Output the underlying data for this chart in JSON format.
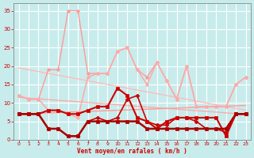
{
  "background_color": "#c8ecec",
  "grid_color": "#b0d8d8",
  "xlabel": "Vent moyen/en rafales ( km/h )",
  "xlabel_color": "#cc0000",
  "tick_color": "#cc0000",
  "ylim": [
    0,
    37
  ],
  "yticks": [
    0,
    5,
    10,
    15,
    20,
    25,
    30,
    35
  ],
  "series": [
    {
      "values": [
        19.5,
        19.0,
        18.5,
        18.0,
        17.5,
        17.0,
        16.5,
        16.0,
        15.5,
        15.0,
        14.5,
        14.0,
        13.5,
        13.0,
        12.5,
        12.0,
        11.5,
        11.0,
        10.5,
        10.0,
        9.5,
        9.0,
        8.5,
        8.0
      ],
      "color": "#ffbbbb",
      "linewidth": 1.0,
      "marker": null,
      "linestyle": "-"
    },
    {
      "values": [
        11.5,
        11.3,
        11.1,
        10.9,
        10.7,
        10.5,
        10.3,
        10.1,
        9.9,
        9.7,
        9.5,
        9.3,
        9.1,
        8.9,
        8.7,
        8.5,
        8.3,
        8.1,
        7.9,
        7.7,
        7.5,
        7.3,
        7.1,
        6.9
      ],
      "color": "#ffaaaa",
      "linewidth": 1.0,
      "marker": null,
      "linestyle": "-"
    },
    {
      "values": [
        7.0,
        7.1,
        7.2,
        7.3,
        7.4,
        7.5,
        7.6,
        7.7,
        7.8,
        7.9,
        8.0,
        8.1,
        8.2,
        8.3,
        8.4,
        8.5,
        8.6,
        8.7,
        8.8,
        8.9,
        9.0,
        9.1,
        9.2,
        9.3
      ],
      "color": "#ff9999",
      "linewidth": 1.0,
      "marker": null,
      "linestyle": "-"
    },
    {
      "values": [
        12,
        11,
        11,
        19,
        19,
        35,
        35,
        18,
        18,
        18,
        24,
        25,
        19,
        17,
        21,
        16,
        11,
        20,
        9,
        9,
        9,
        9,
        15,
        17
      ],
      "color": "#ff9999",
      "linewidth": 1.0,
      "marker": "o",
      "markersize": 2.5,
      "linestyle": "-"
    },
    {
      "values": [
        12,
        11,
        11,
        8,
        8,
        7,
        6,
        17,
        18,
        18,
        24,
        25,
        19,
        15,
        21,
        16,
        11,
        20,
        9,
        9,
        9,
        9,
        15,
        17
      ],
      "color": "#ffaaaa",
      "linewidth": 1.2,
      "marker": "o",
      "markersize": 2.5,
      "linestyle": "-"
    },
    {
      "values": [
        7,
        7,
        7,
        8,
        8,
        7,
        7,
        8,
        9,
        9,
        14,
        12,
        6,
        5,
        3,
        5,
        6,
        6,
        6,
        6,
        6,
        1,
        7,
        7
      ],
      "color": "#cc0000",
      "linewidth": 1.5,
      "marker": "s",
      "markersize": 2.5,
      "linestyle": "-"
    },
    {
      "values": [
        7,
        7,
        7,
        3,
        3,
        1,
        1,
        5,
        6,
        5,
        6,
        11,
        12,
        5,
        4,
        4,
        6,
        6,
        5,
        3,
        3,
        2,
        7,
        7
      ],
      "color": "#cc0000",
      "linewidth": 1.2,
      "marker": "D",
      "markersize": 2.5,
      "linestyle": "-"
    },
    {
      "values": [
        7,
        7,
        7,
        3,
        3,
        1,
        1,
        5,
        5,
        5,
        5,
        5,
        5,
        3,
        3,
        3,
        3,
        3,
        3,
        3,
        3,
        3,
        7,
        7
      ],
      "color": "#aa0000",
      "linewidth": 1.8,
      "marker": "s",
      "markersize": 2.5,
      "linestyle": "-"
    }
  ]
}
